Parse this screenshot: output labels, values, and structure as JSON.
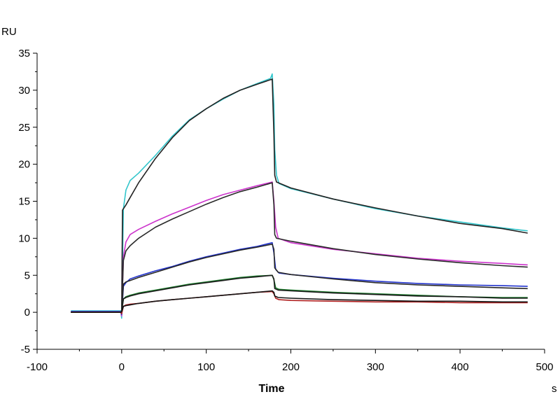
{
  "chart_data": {
    "type": "line",
    "title": "",
    "ylabel": "RU",
    "xlabel": "Time",
    "xunit": "s",
    "xlim": [
      -100,
      500
    ],
    "ylim": [
      -5,
      35
    ],
    "xticks": [
      -100,
      0,
      100,
      200,
      300,
      400,
      500
    ],
    "yticks": [
      -5,
      0,
      5,
      10,
      15,
      20,
      25,
      30,
      35
    ],
    "grid": false,
    "legend": "none",
    "series": [
      {
        "color": "#34c6cc",
        "points": [
          [
            -60,
            0.2
          ],
          [
            -1,
            0.2
          ],
          [
            0,
            -0.8
          ],
          [
            2,
            14
          ],
          [
            5,
            16.5
          ],
          [
            10,
            17.8
          ],
          [
            20,
            18.8
          ],
          [
            40,
            21.2
          ],
          [
            60,
            23.8
          ],
          [
            80,
            26.0
          ],
          [
            100,
            27.5
          ],
          [
            120,
            28.8
          ],
          [
            140,
            30.0
          ],
          [
            160,
            30.9
          ],
          [
            176,
            31.6
          ],
          [
            178,
            32.2
          ],
          [
            180,
            28.0
          ],
          [
            181,
            22.0
          ],
          [
            183,
            18.5
          ],
          [
            186,
            17.4
          ],
          [
            200,
            16.7
          ],
          [
            250,
            15.3
          ],
          [
            300,
            14.0
          ],
          [
            350,
            13.0
          ],
          [
            400,
            12.2
          ],
          [
            450,
            11.4
          ],
          [
            480,
            11.0
          ]
        ]
      },
      {
        "color": "#222222",
        "points": [
          [
            -60,
            0.0
          ],
          [
            -1,
            0.0
          ],
          [
            0,
            0.3
          ],
          [
            1,
            13.8
          ],
          [
            5,
            14.5
          ],
          [
            10,
            15.5
          ],
          [
            20,
            17.5
          ],
          [
            40,
            20.8
          ],
          [
            60,
            23.6
          ],
          [
            80,
            25.9
          ],
          [
            100,
            27.5
          ],
          [
            120,
            28.9
          ],
          [
            140,
            30.0
          ],
          [
            160,
            30.8
          ],
          [
            178,
            31.5
          ],
          [
            180,
            24.0
          ],
          [
            181,
            18.5
          ],
          [
            183,
            17.6
          ],
          [
            200,
            16.8
          ],
          [
            250,
            15.3
          ],
          [
            300,
            14.1
          ],
          [
            350,
            13.0
          ],
          [
            400,
            12.0
          ],
          [
            450,
            11.3
          ],
          [
            480,
            10.7
          ]
        ]
      },
      {
        "color": "#cc33cc",
        "points": [
          [
            -60,
            0.1
          ],
          [
            -1,
            0.1
          ],
          [
            0,
            -0.5
          ],
          [
            2,
            7.5
          ],
          [
            5,
            9.5
          ],
          [
            10,
            10.5
          ],
          [
            20,
            11.2
          ],
          [
            40,
            12.3
          ],
          [
            60,
            13.3
          ],
          [
            80,
            14.2
          ],
          [
            100,
            15.1
          ],
          [
            120,
            15.9
          ],
          [
            140,
            16.5
          ],
          [
            160,
            17.1
          ],
          [
            178,
            17.6
          ],
          [
            180,
            15.0
          ],
          [
            182,
            11.5
          ],
          [
            185,
            10.0
          ],
          [
            200,
            9.4
          ],
          [
            250,
            8.5
          ],
          [
            300,
            7.9
          ],
          [
            350,
            7.3
          ],
          [
            400,
            6.9
          ],
          [
            450,
            6.6
          ],
          [
            480,
            6.4
          ]
        ]
      },
      {
        "color": "#2a2a2a",
        "points": [
          [
            -60,
            0.0
          ],
          [
            -1,
            0.0
          ],
          [
            0,
            0.2
          ],
          [
            2,
            7.0
          ],
          [
            5,
            8.3
          ],
          [
            10,
            9.0
          ],
          [
            20,
            10.0
          ],
          [
            40,
            11.5
          ],
          [
            60,
            12.6
          ],
          [
            80,
            13.6
          ],
          [
            100,
            14.6
          ],
          [
            120,
            15.5
          ],
          [
            140,
            16.3
          ],
          [
            160,
            16.9
          ],
          [
            178,
            17.5
          ],
          [
            180,
            14.5
          ],
          [
            181,
            10.5
          ],
          [
            183,
            10.0
          ],
          [
            200,
            9.6
          ],
          [
            250,
            8.6
          ],
          [
            300,
            7.8
          ],
          [
            350,
            7.2
          ],
          [
            400,
            6.7
          ],
          [
            450,
            6.3
          ],
          [
            480,
            6.1
          ]
        ]
      },
      {
        "color": "#2233cc",
        "points": [
          [
            -60,
            0.1
          ],
          [
            -1,
            0.1
          ],
          [
            0,
            -0.3
          ],
          [
            2,
            3.5
          ],
          [
            5,
            4.0
          ],
          [
            10,
            4.5
          ],
          [
            20,
            4.9
          ],
          [
            40,
            5.6
          ],
          [
            60,
            6.2
          ],
          [
            80,
            6.9
          ],
          [
            100,
            7.5
          ],
          [
            120,
            8.0
          ],
          [
            140,
            8.5
          ],
          [
            160,
            8.9
          ],
          [
            178,
            9.4
          ],
          [
            180,
            8.0
          ],
          [
            182,
            5.8
          ],
          [
            186,
            5.3
          ],
          [
            200,
            5.1
          ],
          [
            250,
            4.6
          ],
          [
            300,
            4.2
          ],
          [
            350,
            3.9
          ],
          [
            400,
            3.7
          ],
          [
            450,
            3.6
          ],
          [
            480,
            3.5
          ]
        ]
      },
      {
        "color": "#262626",
        "points": [
          [
            -60,
            0.0
          ],
          [
            -1,
            0.0
          ],
          [
            0,
            0.2
          ],
          [
            2,
            3.8
          ],
          [
            5,
            4.1
          ],
          [
            10,
            4.3
          ],
          [
            20,
            4.7
          ],
          [
            40,
            5.4
          ],
          [
            60,
            6.1
          ],
          [
            80,
            6.8
          ],
          [
            100,
            7.4
          ],
          [
            120,
            7.9
          ],
          [
            140,
            8.4
          ],
          [
            160,
            8.8
          ],
          [
            178,
            9.2
          ],
          [
            180,
            8.5
          ],
          [
            181,
            6.0
          ],
          [
            185,
            5.4
          ],
          [
            200,
            5.1
          ],
          [
            250,
            4.5
          ],
          [
            300,
            4.0
          ],
          [
            350,
            3.7
          ],
          [
            400,
            3.5
          ],
          [
            450,
            3.3
          ],
          [
            480,
            3.2
          ]
        ]
      },
      {
        "color": "#1a7a2a",
        "points": [
          [
            -60,
            0.0
          ],
          [
            -1,
            0.0
          ],
          [
            0,
            0.2
          ],
          [
            2,
            1.8
          ],
          [
            5,
            2.1
          ],
          [
            10,
            2.3
          ],
          [
            20,
            2.6
          ],
          [
            40,
            3.0
          ],
          [
            60,
            3.4
          ],
          [
            80,
            3.8
          ],
          [
            100,
            4.1
          ],
          [
            120,
            4.4
          ],
          [
            140,
            4.7
          ],
          [
            160,
            4.9
          ],
          [
            178,
            5.0
          ],
          [
            180,
            4.4
          ],
          [
            182,
            3.3
          ],
          [
            186,
            3.1
          ],
          [
            200,
            3.0
          ],
          [
            250,
            2.7
          ],
          [
            300,
            2.5
          ],
          [
            350,
            2.3
          ],
          [
            400,
            2.1
          ],
          [
            450,
            2.0
          ],
          [
            480,
            2.0
          ]
        ]
      },
      {
        "color": "#1c1c1c",
        "points": [
          [
            -60,
            0.0
          ],
          [
            -1,
            0.0
          ],
          [
            0,
            0.1
          ],
          [
            2,
            1.8
          ],
          [
            5,
            2.0
          ],
          [
            10,
            2.2
          ],
          [
            20,
            2.5
          ],
          [
            40,
            2.9
          ],
          [
            60,
            3.3
          ],
          [
            80,
            3.7
          ],
          [
            100,
            4.0
          ],
          [
            120,
            4.3
          ],
          [
            140,
            4.6
          ],
          [
            160,
            4.8
          ],
          [
            178,
            5.0
          ],
          [
            180,
            4.5
          ],
          [
            181,
            3.2
          ],
          [
            185,
            3.0
          ],
          [
            200,
            2.9
          ],
          [
            250,
            2.6
          ],
          [
            300,
            2.4
          ],
          [
            350,
            2.2
          ],
          [
            400,
            2.1
          ],
          [
            450,
            1.9
          ],
          [
            480,
            1.9
          ]
        ]
      },
      {
        "color": "#b02020",
        "points": [
          [
            -60,
            0.0
          ],
          [
            -1,
            0.0
          ],
          [
            0,
            -0.2
          ],
          [
            2,
            0.8
          ],
          [
            5,
            1.0
          ],
          [
            10,
            1.1
          ],
          [
            20,
            1.2
          ],
          [
            40,
            1.5
          ],
          [
            60,
            1.7
          ],
          [
            80,
            1.9
          ],
          [
            100,
            2.1
          ],
          [
            120,
            2.3
          ],
          [
            140,
            2.5
          ],
          [
            160,
            2.7
          ],
          [
            178,
            2.8
          ],
          [
            180,
            2.5
          ],
          [
            182,
            1.9
          ],
          [
            186,
            1.7
          ],
          [
            200,
            1.6
          ],
          [
            250,
            1.5
          ],
          [
            300,
            1.4
          ],
          [
            350,
            1.4
          ],
          [
            400,
            1.3
          ],
          [
            450,
            1.3
          ],
          [
            480,
            1.3
          ]
        ]
      },
      {
        "color": "#141414",
        "points": [
          [
            -60,
            0.0
          ],
          [
            -1,
            0.0
          ],
          [
            0,
            0.1
          ],
          [
            2,
            0.8
          ],
          [
            5,
            0.9
          ],
          [
            10,
            1.0
          ],
          [
            20,
            1.2
          ],
          [
            40,
            1.5
          ],
          [
            60,
            1.7
          ],
          [
            80,
            1.9
          ],
          [
            100,
            2.1
          ],
          [
            120,
            2.3
          ],
          [
            140,
            2.5
          ],
          [
            160,
            2.7
          ],
          [
            178,
            2.9
          ],
          [
            180,
            2.7
          ],
          [
            181,
            2.2
          ],
          [
            185,
            2.0
          ],
          [
            200,
            1.9
          ],
          [
            250,
            1.7
          ],
          [
            300,
            1.6
          ],
          [
            350,
            1.5
          ],
          [
            400,
            1.5
          ],
          [
            450,
            1.4
          ],
          [
            480,
            1.4
          ]
        ]
      }
    ]
  }
}
